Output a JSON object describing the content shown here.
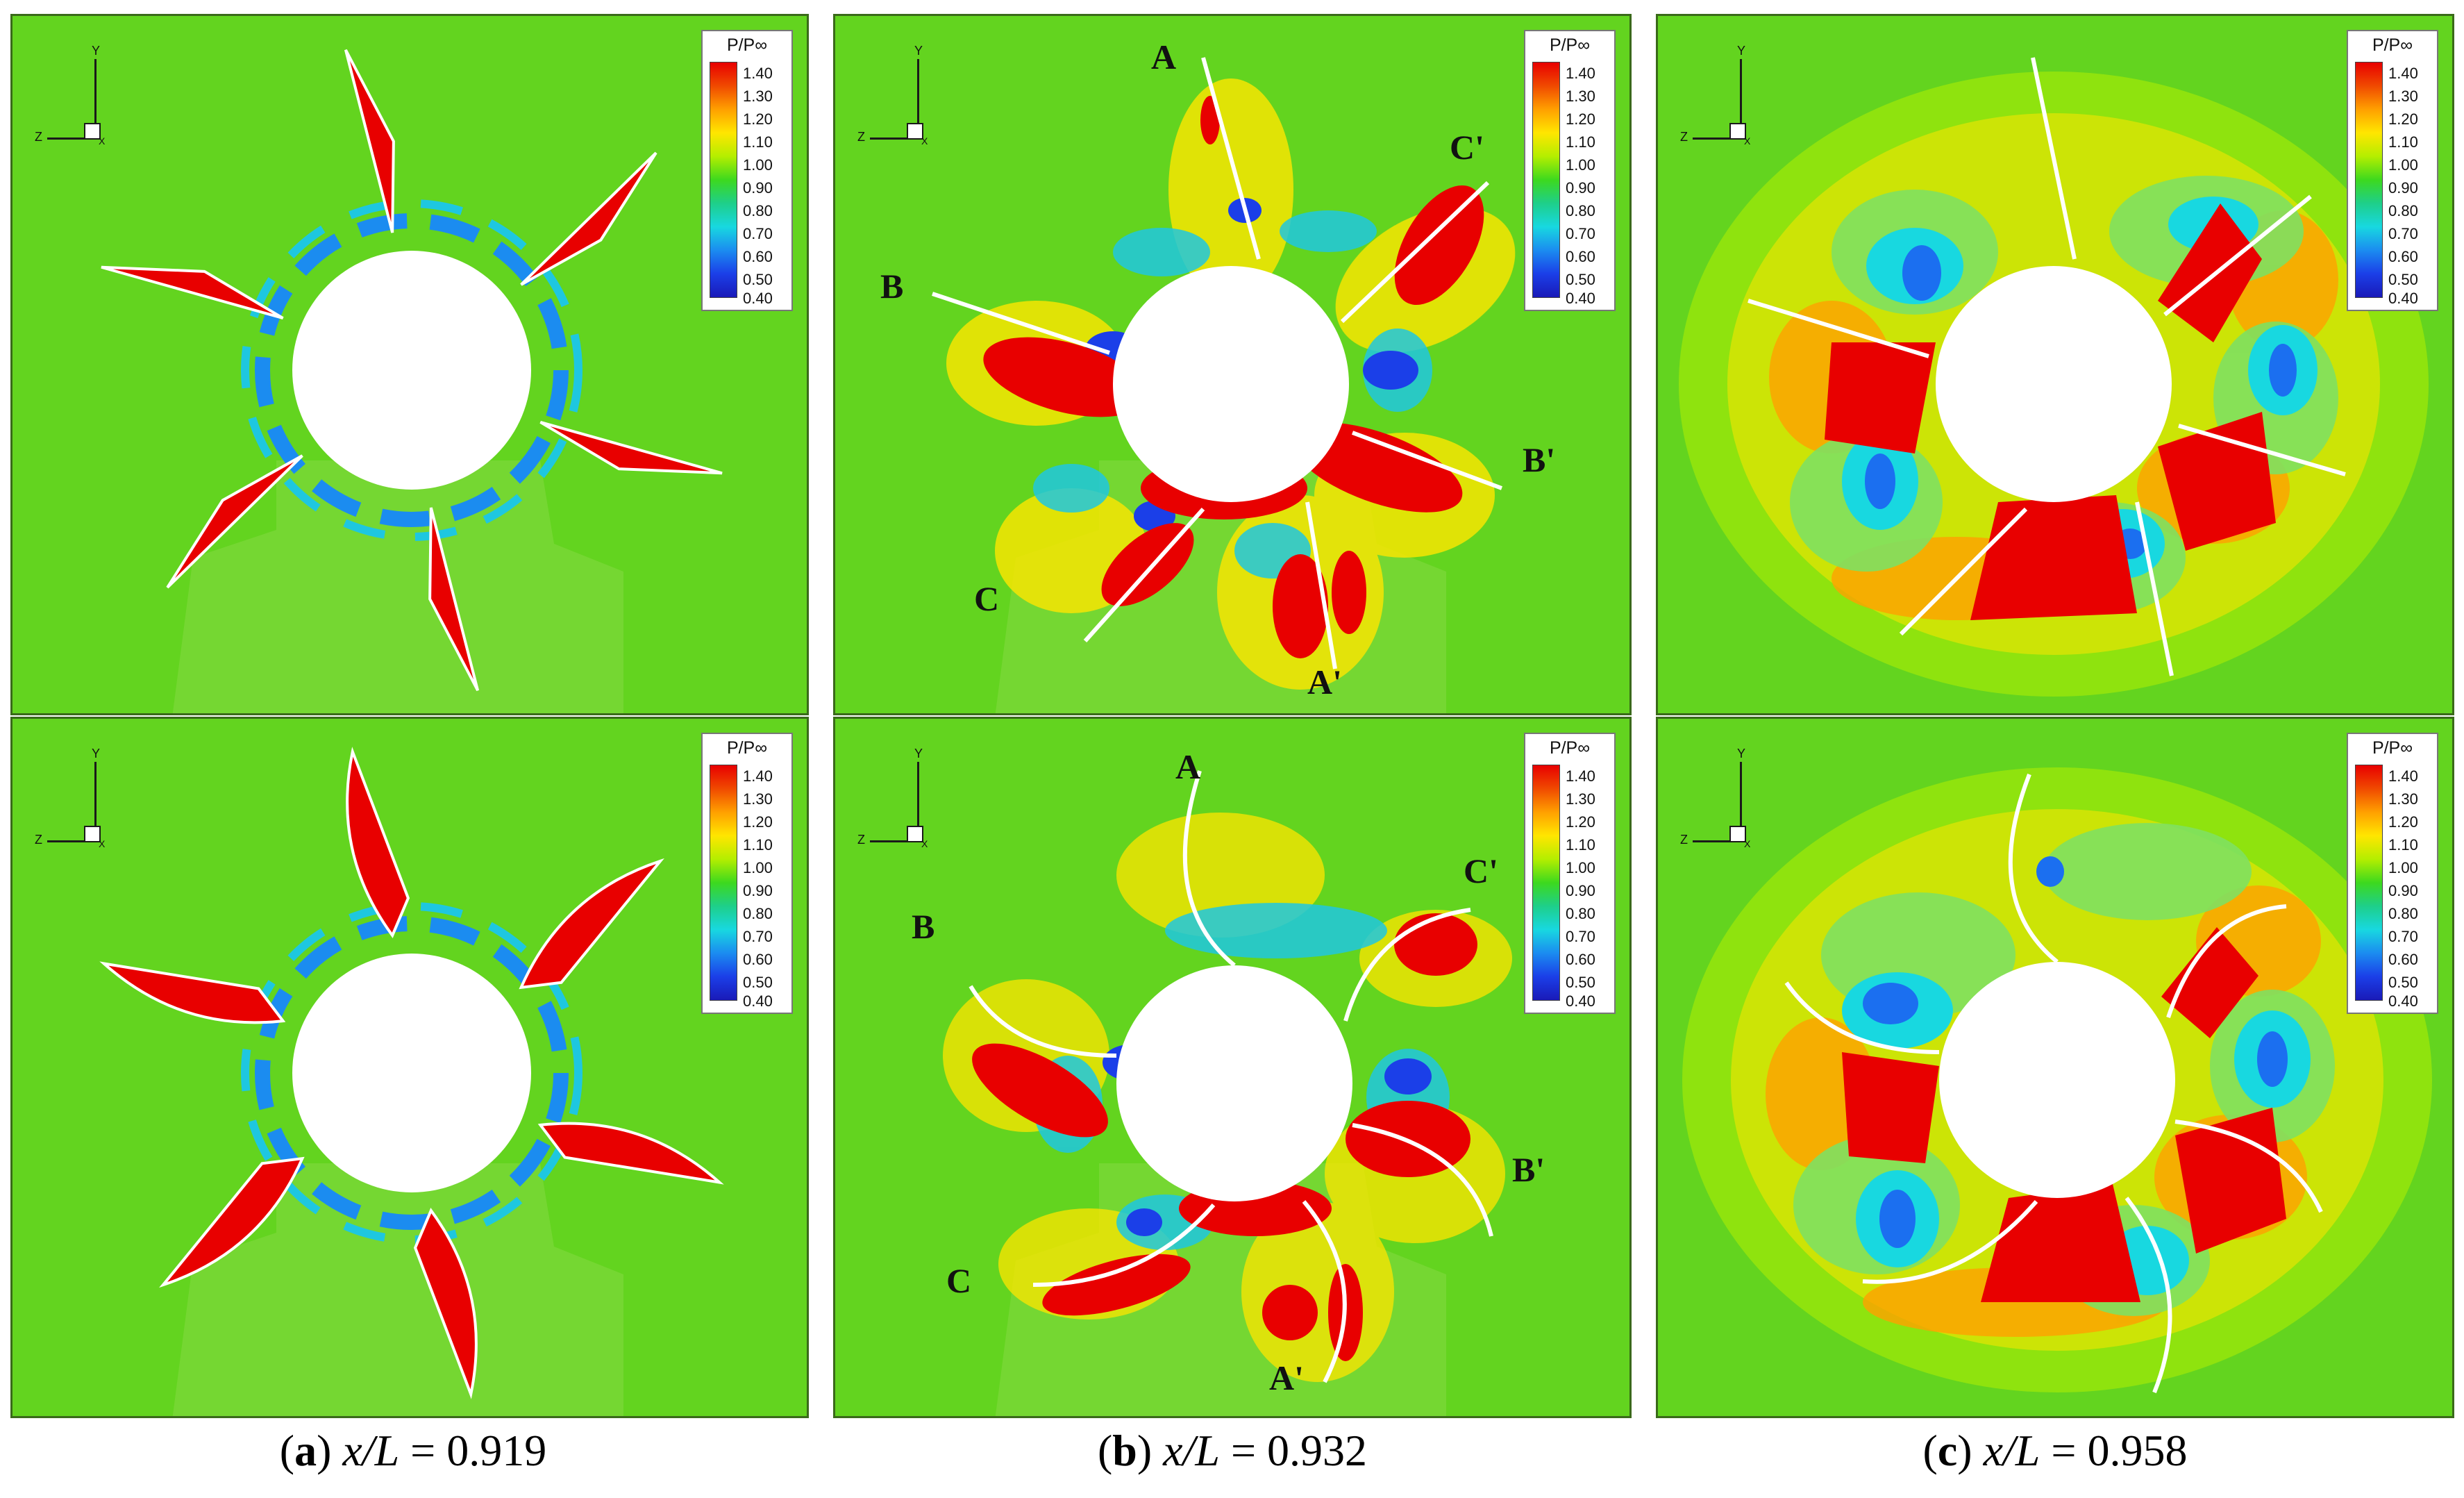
{
  "legend": {
    "title": "P/P∞",
    "ticks": [
      "1.40",
      "1.30",
      "1.20",
      "1.10",
      "1.00",
      "0.90",
      "0.80",
      "0.70",
      "0.60",
      "0.50",
      "0.40"
    ]
  },
  "axes": {
    "y": "Y",
    "z": "Z",
    "x": "X"
  },
  "panels": [
    {
      "id": "a-top"
    },
    {
      "id": "b-top",
      "labels": [
        "A",
        "B",
        "C",
        "A'",
        "B'",
        "C'"
      ]
    },
    {
      "id": "c-top"
    },
    {
      "id": "a-bottom"
    },
    {
      "id": "b-bottom",
      "labels": [
        "A",
        "B",
        "C",
        "A'",
        "B'",
        "C'"
      ]
    },
    {
      "id": "c-bottom"
    }
  ],
  "captions": [
    {
      "letter": "a",
      "var": "x/L",
      "value": "0.919"
    },
    {
      "letter": "b",
      "var": "x/L",
      "value": "0.932"
    },
    {
      "letter": "c",
      "var": "x/L",
      "value": "0.958"
    }
  ],
  "colors": {
    "background": "#63d41f",
    "high": "#e80000",
    "low": "#1a3fe8"
  }
}
